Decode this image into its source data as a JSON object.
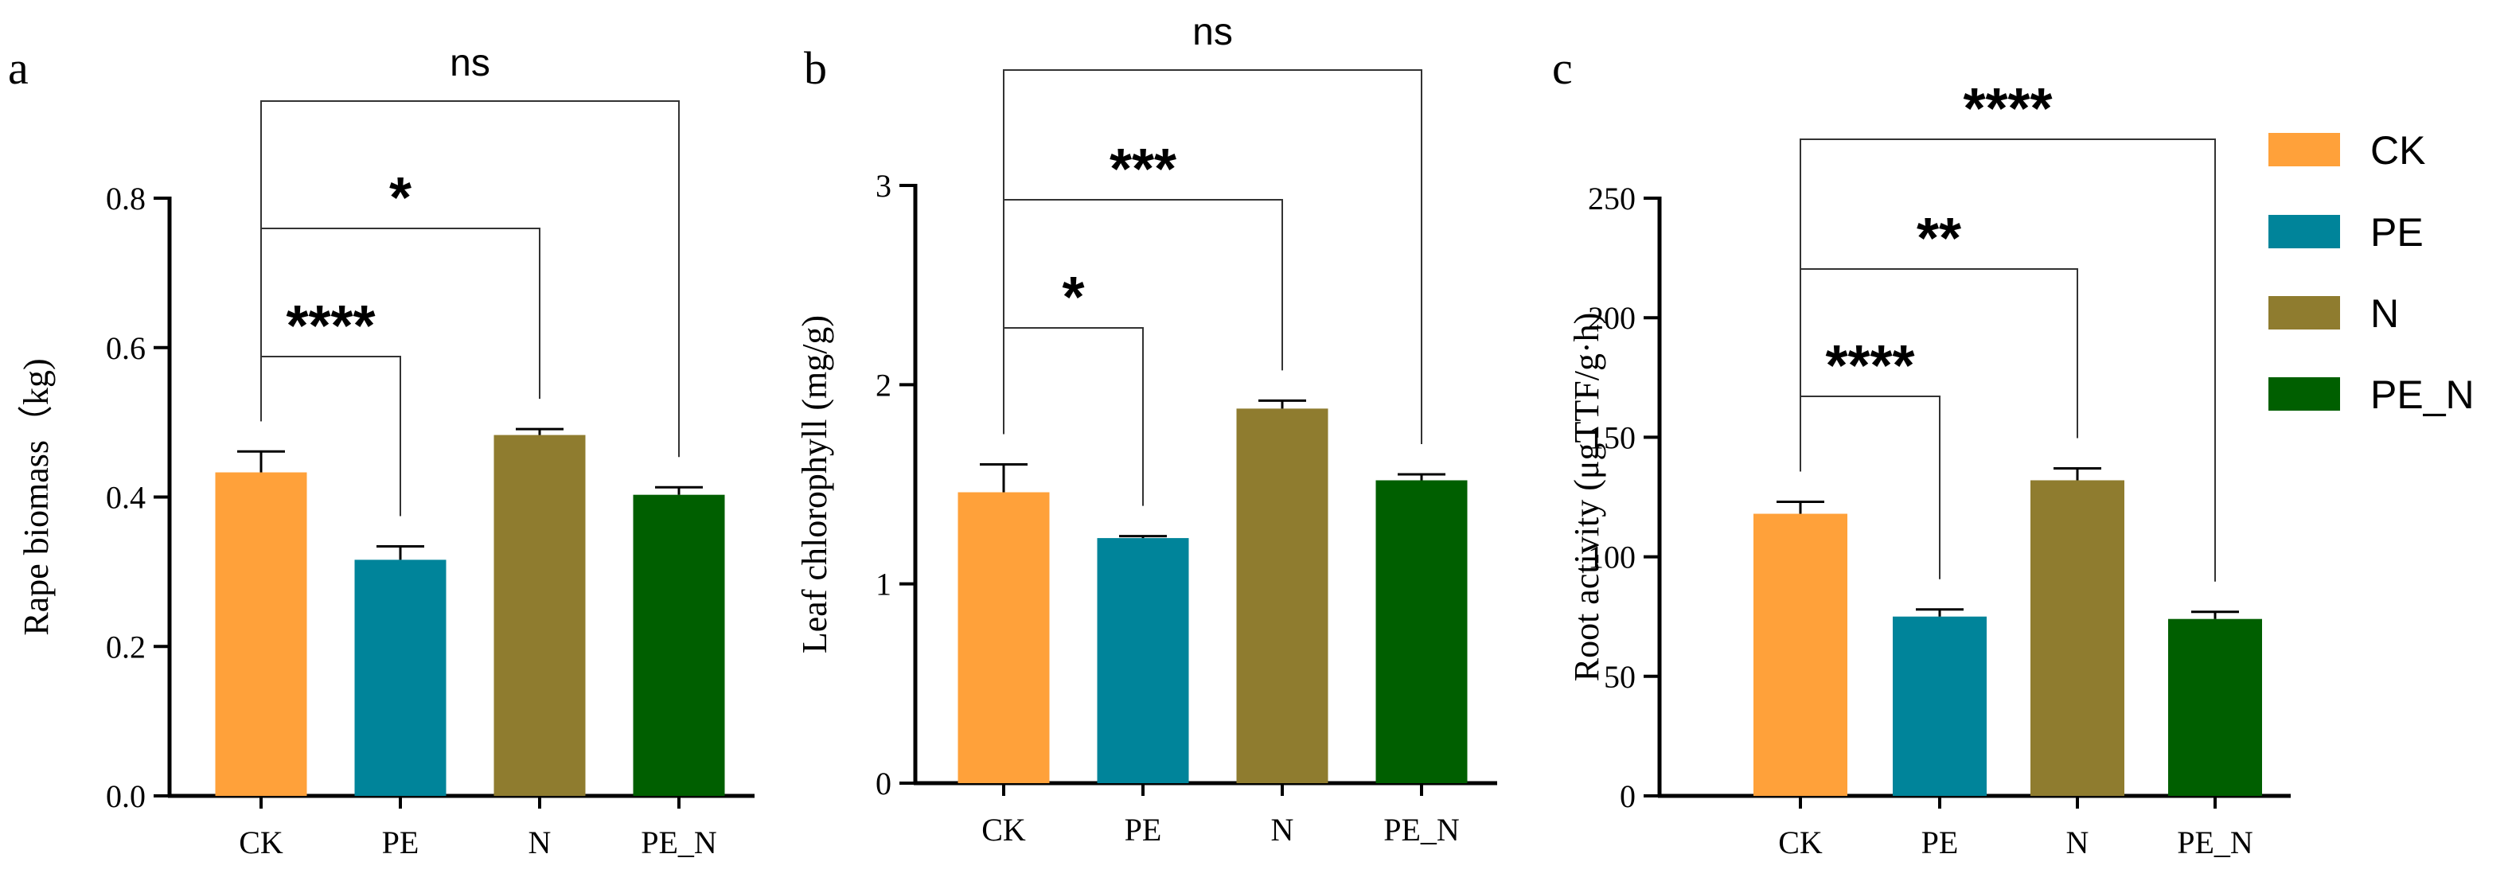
{
  "colors": {
    "CK": "#ffa13a",
    "PE": "#00849a",
    "N": "#8f7c2f",
    "PE_N": "#005f00"
  },
  "legend": [
    {
      "name": "CK",
      "color": "#ffa13a"
    },
    {
      "name": "PE",
      "color": "#00849a"
    },
    {
      "name": "N",
      "color": "#8f7c2f"
    },
    {
      "name": "PE_N",
      "color": "#005f00"
    }
  ],
  "chart_data": [
    {
      "type": "bar",
      "panel": "a",
      "ylabel": "Rape biomass（kg)",
      "categories": [
        "CK",
        "PE",
        "N",
        "PE_N"
      ],
      "values": [
        0.433,
        0.316,
        0.483,
        0.403
      ],
      "errors": [
        0.028,
        0.018,
        0.008,
        0.01
      ],
      "ylim": [
        0,
        0.8
      ],
      "yticks": [
        0.0,
        0.2,
        0.4,
        0.6,
        0.8
      ],
      "ytick_labels": [
        "0.0",
        "0.2",
        "0.4",
        "0.6",
        "0.8"
      ],
      "significance": [
        {
          "from": "CK",
          "to": "PE",
          "label": "****"
        },
        {
          "from": "CK",
          "to": "N",
          "label": "*"
        },
        {
          "from": "CK",
          "to": "PE_N",
          "label": "ns"
        }
      ]
    },
    {
      "type": "bar",
      "panel": "b",
      "ylabel": "Leaf chlorophyll (mg/g)",
      "categories": [
        "CK",
        "PE",
        "N",
        "PE_N"
      ],
      "values": [
        1.46,
        1.23,
        1.88,
        1.52
      ],
      "errors": [
        0.14,
        0.01,
        0.04,
        0.03
      ],
      "ylim": [
        0,
        3
      ],
      "yticks": [
        0,
        1,
        2,
        3
      ],
      "ytick_labels": [
        "0",
        "1",
        "2",
        "3"
      ],
      "significance": [
        {
          "from": "CK",
          "to": "PE",
          "label": "*"
        },
        {
          "from": "CK",
          "to": "N",
          "label": "***"
        },
        {
          "from": "CK",
          "to": "PE_N",
          "label": "ns"
        }
      ]
    },
    {
      "type": "bar",
      "panel": "c",
      "ylabel": "Root activity (μgTTF/g·h)",
      "categories": [
        "CK",
        "PE",
        "N",
        "PE_N"
      ],
      "values": [
        118,
        75,
        132,
        74
      ],
      "errors": [
        5,
        3,
        5,
        3
      ],
      "ylim": [
        0,
        250
      ],
      "yticks": [
        0,
        50,
        100,
        150,
        200,
        250
      ],
      "ytick_labels": [
        "0",
        "50",
        "100",
        "150",
        "200",
        "250"
      ],
      "significance": [
        {
          "from": "CK",
          "to": "PE",
          "label": "****"
        },
        {
          "from": "CK",
          "to": "N",
          "label": "**"
        },
        {
          "from": "CK",
          "to": "PE_N",
          "label": "****"
        }
      ]
    }
  ]
}
